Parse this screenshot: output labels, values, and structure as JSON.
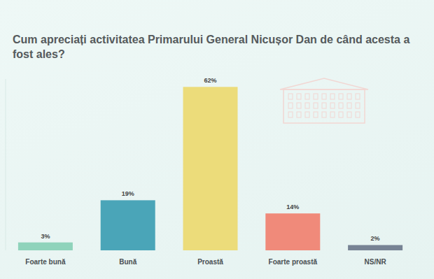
{
  "chart_data": {
    "type": "bar",
    "title": "Cum apreciați activitatea Primarului General Nicușor Dan de când acesta a fost ales?",
    "categories": [
      "Foarte bună",
      "Bună",
      "Proastă",
      "Foarte proastă",
      "NS/NR"
    ],
    "values": [
      3,
      19,
      62,
      14,
      2
    ],
    "value_labels": [
      "3%",
      "19%",
      "62%",
      "14%",
      "2%"
    ],
    "colors": [
      "#8fd3bb",
      "#4aa5b8",
      "#ecdc7a",
      "#f08a7a",
      "#778394"
    ],
    "ylim": [
      0,
      65
    ],
    "grid": false,
    "data_labels": true,
    "tick_labels": "x"
  }
}
